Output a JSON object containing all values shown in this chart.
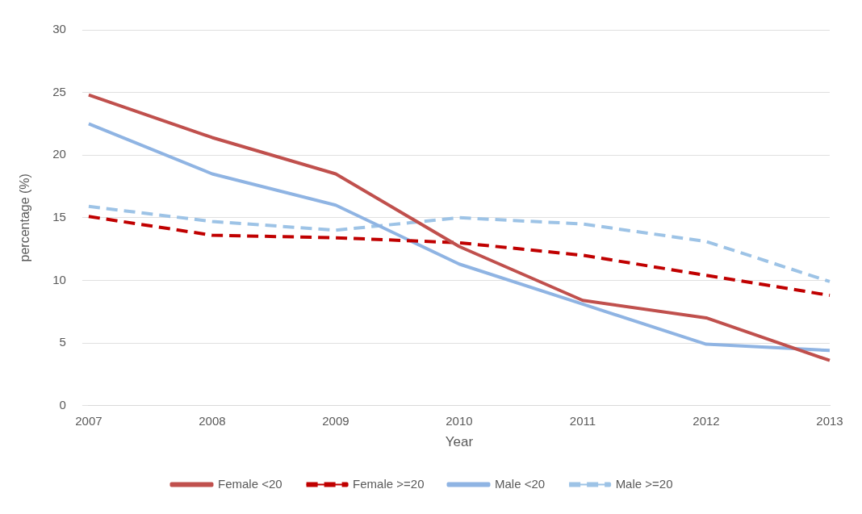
{
  "chart_data": {
    "type": "line",
    "xlabel": "Year",
    "ylabel": "percentage (%)",
    "categories": [
      "2007",
      "2008",
      "2009",
      "2010",
      "2011",
      "2012",
      "2013"
    ],
    "series": [
      {
        "name": "Female <20",
        "color": "#c0504d",
        "line_style": "solid",
        "values": [
          24.8,
          21.4,
          18.5,
          12.7,
          8.4,
          7.0,
          3.6
        ]
      },
      {
        "name": "Female >=20",
        "color": "#c00000",
        "line_style": "dashed",
        "values": [
          15.1,
          13.6,
          13.4,
          13.0,
          12.0,
          10.4,
          8.8
        ]
      },
      {
        "name": "Male <20",
        "color": "#8fb4e3",
        "line_style": "solid",
        "values": [
          22.5,
          18.5,
          16.0,
          11.3,
          8.1,
          4.9,
          4.4
        ]
      },
      {
        "name": "Male >=20",
        "color": "#9dc3e6",
        "line_style": "dashed",
        "values": [
          15.9,
          14.7,
          14.0,
          15.0,
          14.5,
          13.1,
          9.9
        ]
      }
    ],
    "ylim": [
      0,
      30
    ],
    "yticks": [
      0,
      5,
      10,
      15,
      20,
      25,
      30
    ],
    "grid": "y",
    "legend": "bottom",
    "marker": "none"
  }
}
